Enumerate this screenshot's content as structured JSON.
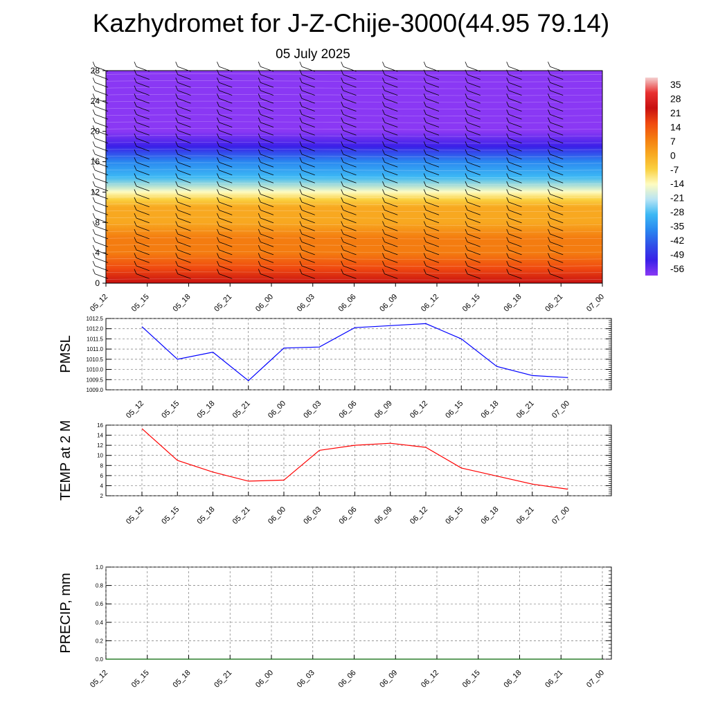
{
  "title": "Kazhydromet for J-Z-Chije-3000(44.95 79.14)",
  "subtitle": "05 July 2025",
  "colorbar": {
    "labels": [
      "35",
      "28",
      "21",
      "14",
      "7",
      "0",
      "-7",
      "-14",
      "-21",
      "-28",
      "-35",
      "-42",
      "-49",
      "-56"
    ],
    "colors": [
      "#f4d0d0",
      "#e83030",
      "#c81010",
      "#f04a10",
      "#f47c10",
      "#f8a820",
      "#fad040",
      "#fefcc0",
      "#b8e4f4",
      "#3cb8f4",
      "#2a88f0",
      "#3050e8",
      "#3a20e8",
      "#8a38f4"
    ]
  },
  "chart_data": [
    {
      "type": "heatmap",
      "name": "cross-section",
      "x": [
        "05_12",
        "05_15",
        "05_18",
        "05_21",
        "06_00",
        "06_03",
        "06_06",
        "06_09",
        "06_12",
        "06_15",
        "06_18",
        "06_21",
        "07_00"
      ],
      "y_ticks": [
        "0",
        "4",
        "8",
        "12",
        "16",
        "20",
        "24",
        "28"
      ],
      "ylim": [
        0,
        28
      ],
      "field": "temperature with wind barbs",
      "levels": [
        0,
        2,
        4,
        6,
        8,
        10,
        11,
        12,
        14,
        16,
        18,
        20,
        22,
        24,
        26,
        28
      ],
      "values_at_levels": [
        20,
        15,
        10,
        5,
        2,
        -2,
        -8,
        -16,
        -28,
        -38,
        -50,
        -58,
        -58,
        -56,
        -56,
        -56
      ]
    },
    {
      "type": "line",
      "ylabel": "PMSL",
      "x": [
        "05_12",
        "05_15",
        "05_18",
        "05_21",
        "06_00",
        "06_03",
        "06_06",
        "06_09",
        "06_12",
        "06_15",
        "06_18",
        "06_21",
        "07_00"
      ],
      "y_ticks": [
        "1009.0",
        "1009.5",
        "1010.0",
        "1010.5",
        "1011.0",
        "1011.5",
        "1012.0",
        "1012.5"
      ],
      "ylim": [
        1009.0,
        1012.5
      ],
      "color": "#0000ff",
      "values": [
        1012.1,
        1010.5,
        1010.85,
        1009.45,
        1011.05,
        1011.1,
        1012.05,
        1012.15,
        1012.25,
        1011.5,
        1010.15,
        1009.7,
        1009.6
      ]
    },
    {
      "type": "line",
      "ylabel": "TEMP at 2 M",
      "x": [
        "05_12",
        "05_15",
        "05_18",
        "05_21",
        "06_00",
        "06_03",
        "06_06",
        "06_09",
        "06_12",
        "06_15",
        "06_18",
        "06_21",
        "07_00"
      ],
      "y_ticks": [
        "2",
        "4",
        "6",
        "8",
        "10",
        "12",
        "14",
        "16"
      ],
      "ylim": [
        2,
        16
      ],
      "color": "#ff0000",
      "values": [
        15.3,
        9.0,
        6.7,
        4.9,
        5.1,
        11.0,
        12.0,
        12.4,
        11.6,
        7.5,
        5.9,
        4.3,
        3.3
      ]
    },
    {
      "type": "line",
      "ylabel": "PRECIP, mm",
      "x": [
        "05_12",
        "05_15",
        "05_18",
        "05_21",
        "06_00",
        "06_03",
        "06_06",
        "06_09",
        "06_12",
        "06_15",
        "06_18",
        "06_21",
        "07_00"
      ],
      "y_ticks": [
        "0.0",
        "0.2",
        "0.4",
        "0.6",
        "0.8",
        "1.0"
      ],
      "ylim": [
        0,
        1.0
      ],
      "color": "#006400",
      "values": [
        0,
        0,
        0,
        0,
        0,
        0,
        0,
        0,
        0,
        0,
        0,
        0,
        0
      ]
    }
  ]
}
